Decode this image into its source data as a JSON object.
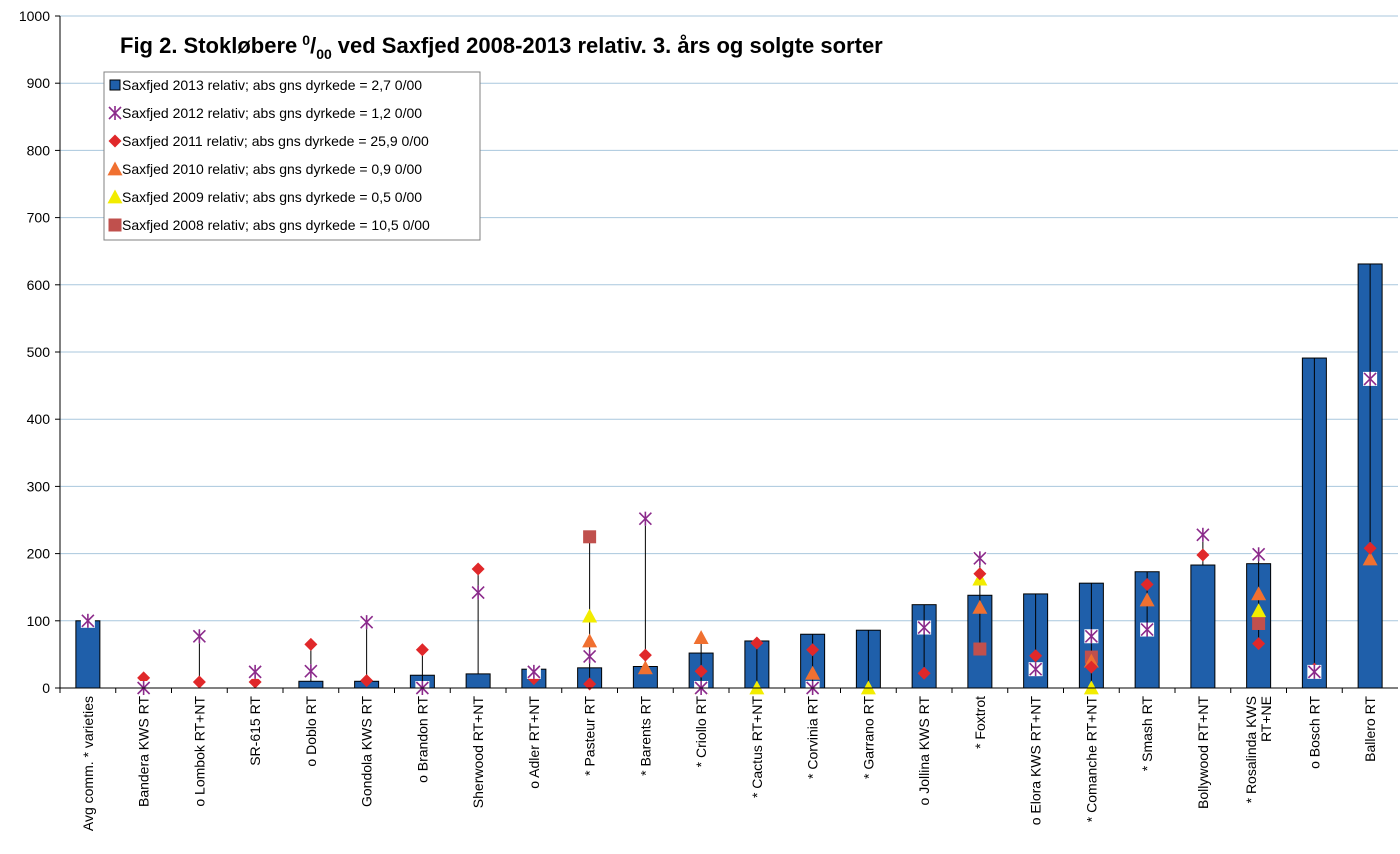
{
  "chart_data": {
    "type": "bar",
    "title": "Fig 2. Stokløbere",
    "title_sup": "0",
    "title_sub": "00",
    "title_rest": "ved Saxfjed 2008-2013 relativ. 3. års og solgte sorter",
    "ylim": [
      0,
      1000
    ],
    "yticks": [
      0,
      100,
      200,
      300,
      400,
      500,
      600,
      700,
      800,
      900,
      1000
    ],
    "grid": true,
    "legend_position": "top-left",
    "categories": [
      [
        "Avg comm. * varieties"
      ],
      [
        "Bandera KWS RT"
      ],
      [
        "o  Lombok  RT+NT"
      ],
      [
        "SR-615  RT"
      ],
      [
        "o  Doblo RT"
      ],
      [
        "Gondola KWS RT"
      ],
      [
        "o  Brandon  RT"
      ],
      [
        "Sherwood  RT+NT"
      ],
      [
        "o  Adler  RT+NT"
      ],
      [
        "*  Pasteur  RT"
      ],
      [
        "*  Barents  RT"
      ],
      [
        "*  Criollo  RT"
      ],
      [
        "*  Cactus  RT+NT"
      ],
      [
        "*  Corvinia  RT"
      ],
      [
        "*  Garrano  RT"
      ],
      [
        "o  Jollina KWS RT"
      ],
      [
        "*  Foxtrot"
      ],
      [
        "o  Elora KWS  RT+NT"
      ],
      [
        "*  Comanche  RT+NT"
      ],
      [
        "*  Smash  RT"
      ],
      [
        "Bollywood  RT+NT"
      ],
      [
        "*  Rosalinda KWS",
        "RT+NE"
      ],
      [
        "o  Bosch  RT"
      ],
      [
        "Ballero  RT"
      ]
    ],
    "series": [
      {
        "name": "Saxfjed 2013 relativ; abs gns dyrkede = 2,7 0/00",
        "marker": "bar",
        "color": "#1F5FAA",
        "values": [
          100,
          null,
          null,
          null,
          10,
          10,
          19,
          21,
          28,
          30,
          32,
          52,
          70,
          80,
          86,
          124,
          138,
          140,
          156,
          173,
          183,
          185,
          491,
          631
        ]
      },
      {
        "name": "Saxfjed 2012 relativ; abs gns dyrkede = 1,2 0/00",
        "marker": "star",
        "color": "#8B2A8B",
        "values": [
          100,
          0,
          77,
          24,
          25,
          98,
          0,
          142,
          24,
          47,
          252,
          0,
          null,
          0,
          null,
          90,
          193,
          28,
          77,
          87,
          228,
          199,
          24,
          460
        ]
      },
      {
        "name": "Saxfjed 2011 relativ; abs gns dyrkede = 25,9 0/00",
        "marker": "diamond",
        "color": "#E0282A",
        "values": [
          100,
          15,
          9,
          9,
          65,
          11,
          57,
          177,
          14,
          6,
          49,
          25,
          67,
          57,
          null,
          22,
          170,
          48,
          31,
          154,
          198,
          66,
          28,
          208
        ]
      },
      {
        "name": "Saxfjed 2010 relativ; abs gns dyrkede = 0,9 0/00",
        "marker": "triangle",
        "color": "#F07030",
        "values": [
          null,
          null,
          null,
          null,
          null,
          null,
          null,
          null,
          null,
          70,
          30,
          75,
          null,
          22,
          null,
          null,
          120,
          null,
          40,
          131,
          null,
          140,
          null,
          192
        ]
      },
      {
        "name": "Saxfjed 2009 relativ; abs gns dyrkede = 0,5 0/00",
        "marker": "triangle",
        "color": "#F2EC00",
        "values": [
          null,
          null,
          null,
          null,
          null,
          null,
          null,
          null,
          null,
          107,
          null,
          0,
          0,
          null,
          0,
          null,
          162,
          null,
          0,
          null,
          null,
          115,
          null,
          null
        ]
      },
      {
        "name": "Saxfjed 2008 relativ; abs gns dyrkede = 10,5 0/00",
        "marker": "square",
        "color": "#C0504D",
        "values": [
          100,
          null,
          null,
          null,
          null,
          null,
          null,
          null,
          null,
          225,
          null,
          null,
          null,
          null,
          null,
          null,
          58,
          null,
          46,
          null,
          null,
          96,
          null,
          null
        ]
      }
    ]
  }
}
